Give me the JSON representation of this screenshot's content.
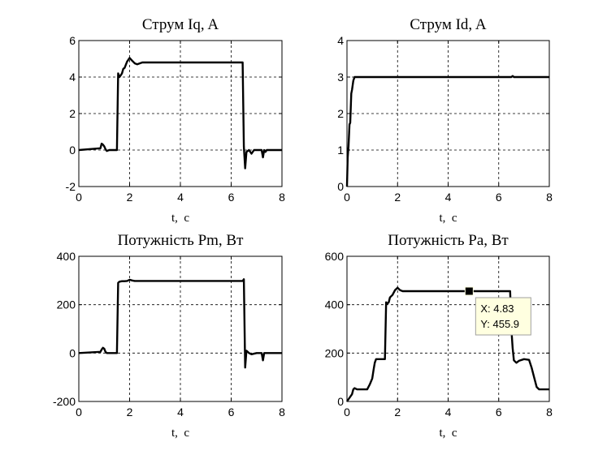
{
  "chart_data": [
    {
      "type": "line",
      "title": "Струм Iq, A",
      "xlabel": "t,  c",
      "ylabel": "",
      "xlim": [
        0,
        8
      ],
      "ylim": [
        -2,
        6
      ],
      "xticks": [
        0,
        2,
        4,
        6,
        8
      ],
      "yticks": [
        -2,
        0,
        2,
        4,
        6
      ],
      "xtick_labels": [
        "0",
        "2",
        "4",
        "6",
        "8"
      ],
      "ytick_labels": [
        "-2",
        "0",
        "2",
        "4",
        "6"
      ],
      "grid": true,
      "series": [
        {
          "x": [
            0,
            0.85,
            0.9,
            0.95,
            1.0,
            1.05,
            1.1,
            1.2,
            1.5,
            1.55,
            1.6,
            1.65,
            1.7,
            1.75,
            1.8,
            1.9,
            2.0,
            2.1,
            2.2,
            2.3,
            2.5,
            6.45,
            6.5,
            6.55,
            6.6,
            6.7,
            6.8,
            6.9,
            7.0,
            7.2,
            7.25,
            7.3,
            7.35,
            7.4,
            7.5,
            8.0
          ],
          "y": [
            0,
            0.1,
            0.35,
            0.3,
            0.2,
            0.05,
            -0.05,
            0.0,
            0.0,
            4.2,
            4.0,
            4.1,
            4.2,
            4.45,
            4.5,
            4.85,
            5.05,
            4.9,
            4.75,
            4.7,
            4.8,
            4.8,
            0.2,
            -1.0,
            -0.1,
            0.0,
            -0.2,
            0.0,
            0.0,
            0.0,
            -0.4,
            0.0,
            -0.1,
            0.0,
            0.0,
            0.0
          ]
        }
      ]
    },
    {
      "type": "line",
      "title": "Струм Id, A",
      "xlabel": "t,  c",
      "ylabel": "",
      "xlim": [
        0,
        8
      ],
      "ylim": [
        0,
        4
      ],
      "xticks": [
        0,
        2,
        4,
        6,
        8
      ],
      "yticks": [
        0,
        1,
        2,
        3,
        4
      ],
      "xtick_labels": [
        "0",
        "2",
        "4",
        "6",
        "8"
      ],
      "ytick_labels": [
        "0",
        "1",
        "2",
        "3",
        "4"
      ],
      "grid": true,
      "series": [
        {
          "x": [
            0,
            0.03,
            0.06,
            0.1,
            0.13,
            0.17,
            0.2,
            0.25,
            0.3,
            6.5,
            6.55,
            6.6,
            8.0
          ],
          "y": [
            0,
            0.8,
            1.1,
            1.7,
            1.75,
            2.55,
            2.65,
            2.9,
            3.0,
            3.0,
            3.03,
            3.0,
            3.0
          ]
        }
      ]
    },
    {
      "type": "line",
      "title": "Потужність Pm, Вт",
      "xlabel": "t,  c",
      "ylabel": "",
      "xlim": [
        0,
        8
      ],
      "ylim": [
        -200,
        400
      ],
      "xticks": [
        0,
        2,
        4,
        6,
        8
      ],
      "yticks": [
        -200,
        0,
        200,
        400
      ],
      "xtick_labels": [
        "0",
        "2",
        "4",
        "6",
        "8"
      ],
      "ytick_labels": [
        "-200",
        "0",
        "200",
        "400"
      ],
      "grid": true,
      "series": [
        {
          "x": [
            0,
            0.85,
            0.9,
            0.95,
            1.0,
            1.05,
            1.1,
            1.2,
            1.5,
            1.55,
            1.6,
            1.7,
            1.8,
            1.9,
            2.0,
            2.1,
            2.2,
            2.5,
            6.45,
            6.5,
            6.55,
            6.6,
            6.7,
            6.8,
            7.0,
            7.2,
            7.25,
            7.3,
            7.4,
            8.0
          ],
          "y": [
            0,
            5,
            15,
            22,
            18,
            5,
            0,
            0,
            0,
            290,
            295,
            297,
            297,
            298,
            303,
            300,
            298,
            298,
            298,
            305,
            -60,
            10,
            0,
            -5,
            0,
            0,
            -30,
            0,
            0,
            0
          ]
        }
      ]
    },
    {
      "type": "line",
      "title": "Потужність Pa, Вт",
      "xlabel": "t,  c",
      "ylabel": "",
      "xlim": [
        0,
        8
      ],
      "ylim": [
        0,
        600
      ],
      "xticks": [
        0,
        2,
        4,
        6,
        8
      ],
      "yticks": [
        0,
        200,
        400,
        600
      ],
      "xtick_labels": [
        "0",
        "2",
        "4",
        "6",
        "8"
      ],
      "ytick_labels": [
        "0",
        "200",
        "400",
        "600"
      ],
      "grid": true,
      "series": [
        {
          "x": [
            0,
            0.1,
            0.2,
            0.25,
            0.3,
            0.4,
            0.5,
            0.6,
            0.8,
            0.9,
            1.0,
            1.05,
            1.1,
            1.15,
            1.2,
            1.5,
            1.55,
            1.6,
            1.65,
            1.7,
            1.8,
            1.9,
            2.0,
            2.1,
            2.2,
            2.5,
            6.45,
            6.5,
            6.55,
            6.6,
            6.7,
            6.8,
            7.0,
            7.2,
            7.3,
            7.4,
            7.5,
            7.6,
            8.0
          ],
          "y": [
            0,
            15,
            30,
            50,
            55,
            50,
            50,
            50,
            50,
            70,
            95,
            130,
            160,
            175,
            175,
            175,
            410,
            405,
            410,
            430,
            440,
            460,
            470,
            460,
            456,
            456,
            456,
            300,
            220,
            170,
            160,
            168,
            175,
            172,
            140,
            100,
            60,
            50,
            50
          ]
        }
      ],
      "datatip": {
        "x": 4.83,
        "y": 455.9,
        "label_x": "X: 4.83",
        "label_y": "Y: 455.9"
      }
    }
  ]
}
